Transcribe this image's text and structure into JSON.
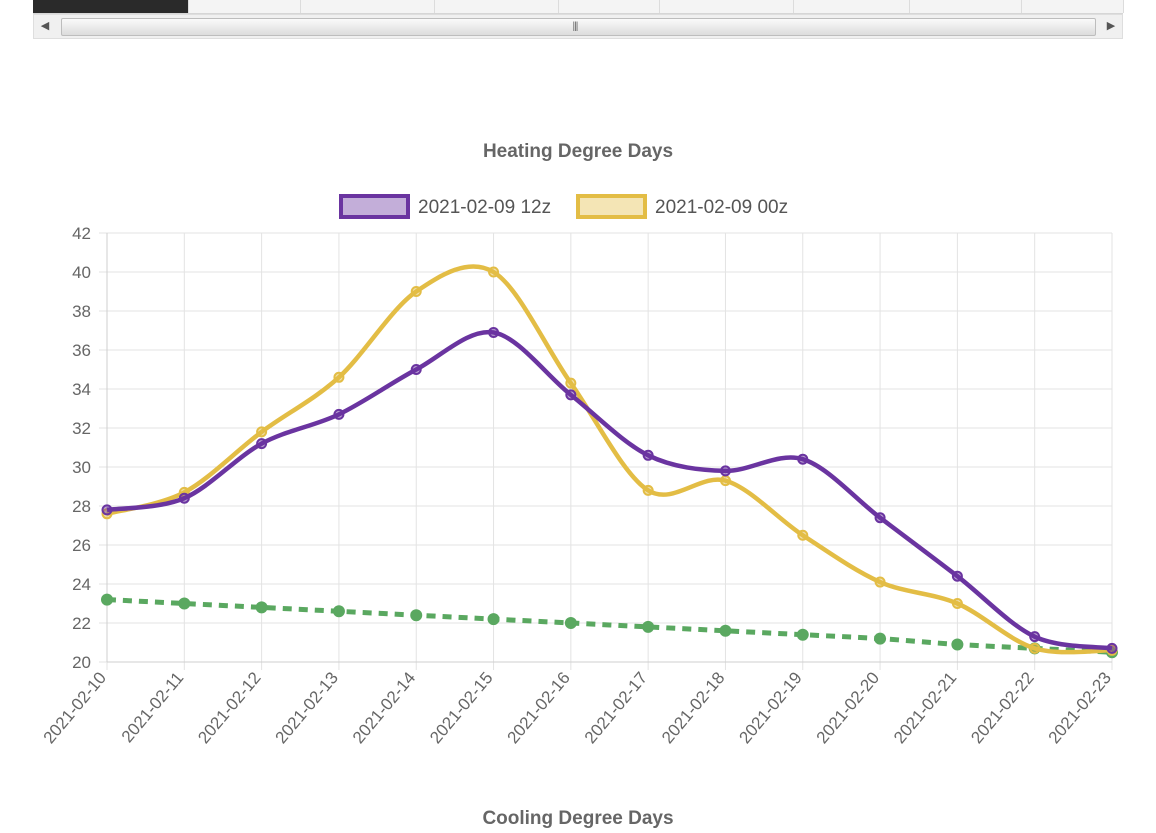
{
  "scrollbar": {
    "left_arrow": "◀",
    "right_arrow": "▶",
    "grip": "|||"
  },
  "heading_cooling": "Cooling Degree Days",
  "colors": {
    "series_12z": "#6a34a0",
    "series_00z": "#e3bd45",
    "trend": "#5aa860",
    "grid": "#e3e3e3"
  },
  "chart_data": {
    "type": "line",
    "title": "Heating Degree Days",
    "xlabel": "",
    "ylabel": "",
    "ylim": [
      20,
      42
    ],
    "yticks": [
      20,
      22,
      24,
      26,
      28,
      30,
      32,
      34,
      36,
      38,
      40,
      42
    ],
    "grid": true,
    "legend": "top-center",
    "categories": [
      "2021-02-10",
      "2021-02-11",
      "2021-02-12",
      "2021-02-13",
      "2021-02-14",
      "2021-02-15",
      "2021-02-16",
      "2021-02-17",
      "2021-02-18",
      "2021-02-19",
      "2021-02-20",
      "2021-02-21",
      "2021-02-22",
      "2021-02-23"
    ],
    "series": [
      {
        "name": "2021-02-09 12z",
        "color": "#6a34a0",
        "values": [
          27.8,
          28.4,
          31.2,
          32.7,
          35.0,
          36.9,
          33.7,
          30.6,
          29.8,
          30.4,
          27.4,
          24.4,
          21.3,
          20.7
        ]
      },
      {
        "name": "2021-02-09 00z",
        "color": "#e3bd45",
        "values": [
          27.6,
          28.7,
          31.8,
          34.6,
          39.0,
          40.0,
          34.3,
          28.8,
          29.3,
          26.5,
          24.1,
          23.0,
          20.7,
          20.6
        ]
      },
      {
        "color": "#5aa860",
        "dashed": true,
        "values": [
          23.2,
          23.0,
          22.8,
          22.6,
          22.4,
          22.2,
          22.0,
          21.8,
          21.6,
          21.4,
          21.2,
          20.9,
          20.7,
          20.5
        ]
      }
    ]
  }
}
